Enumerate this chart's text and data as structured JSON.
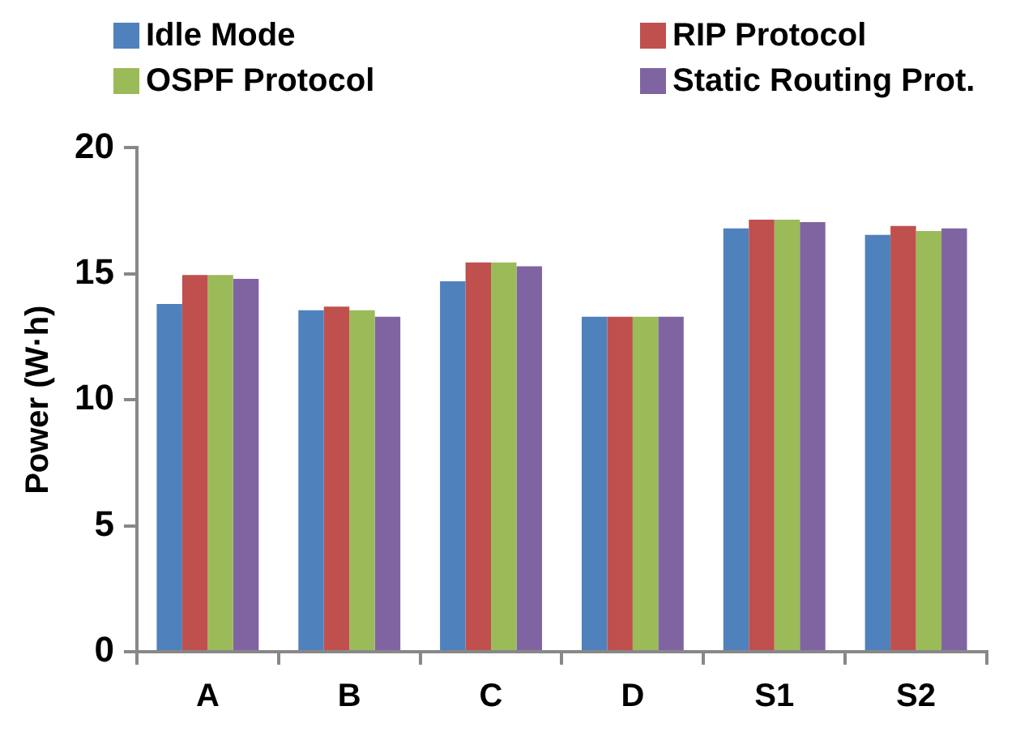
{
  "chart_data": {
    "type": "bar",
    "ylabel": "Power (W·h)",
    "categories": [
      "A",
      "B",
      "C",
      "D",
      "S1",
      "S2"
    ],
    "series": [
      {
        "name": "Idle Mode",
        "color": "#4f81bd",
        "values": [
          13.8,
          13.55,
          14.7,
          13.3,
          16.8,
          16.55
        ]
      },
      {
        "name": "RIP Protocol",
        "color": "#c0504d",
        "values": [
          14.95,
          13.7,
          15.45,
          13.3,
          17.15,
          16.9
        ]
      },
      {
        "name": "OSPF Protocol",
        "color": "#9bbb59",
        "values": [
          14.95,
          13.55,
          15.45,
          13.3,
          17.15,
          16.7
        ]
      },
      {
        "name": "Static Routing Prot.",
        "color": "#8064a2",
        "values": [
          14.8,
          13.3,
          15.3,
          13.3,
          17.05,
          16.8
        ]
      }
    ],
    "ylim": [
      0,
      20
    ],
    "yticks": [
      0,
      5,
      10,
      15,
      20
    ],
    "grid": false,
    "legend": "top"
  }
}
